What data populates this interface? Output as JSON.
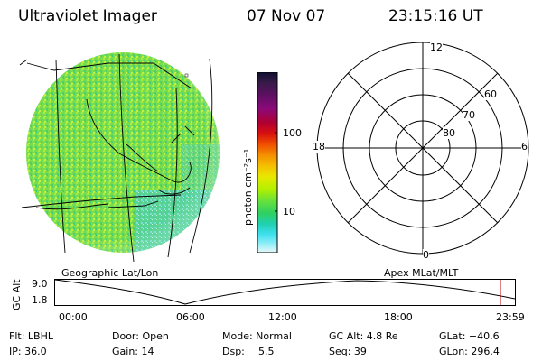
{
  "header": {
    "instrument": "Ultraviolet Imager",
    "date": "07 Nov 07",
    "time": "23:15:16 UT"
  },
  "colorbar": {
    "label": "photon cm⁻²s⁻¹",
    "ticks": [
      "100",
      "10"
    ],
    "colors": [
      "#101030",
      "#3a1a4a",
      "#5a1060",
      "#8a0a7a",
      "#b00030",
      "#d81010",
      "#f05000",
      "#f59000",
      "#f5c000",
      "#e8e800",
      "#b0f000",
      "#60e040",
      "#30d060",
      "#20d0b0",
      "#40e0f0",
      "#a0f0f8",
      "#e8f8f8"
    ]
  },
  "left_map": {
    "caption": "Geographic Lat/Lon"
  },
  "polar_plot": {
    "caption": "Apex MLat/MLT",
    "mlt_labels": {
      "top": "12",
      "bottom": "0",
      "left": "18",
      "right": "6"
    },
    "lat_labels": [
      "60",
      "70",
      "80"
    ]
  },
  "timeline": {
    "ylabel": "GC Alt",
    "y_top": "9.0",
    "y_bottom": "1.8",
    "x_ticks": [
      "00:00",
      "06:00",
      "12:00",
      "18:00",
      "23:59"
    ],
    "current_marker_color": "#c00000"
  },
  "status": {
    "row1": {
      "flt": "Flt: LBHL",
      "door": "Door: Open",
      "mode": "Mode: Normal",
      "gcalt": "GC Alt: 4.8 Re",
      "glat": "GLat: −40.6"
    },
    "row2": {
      "ip": "IP: 36.0",
      "gain": "Gain: 14",
      "dsp_label": "Dsp:",
      "dsp_value": "5.5",
      "seq": "Seq: 39",
      "glon": "GLon: 296.4"
    }
  }
}
